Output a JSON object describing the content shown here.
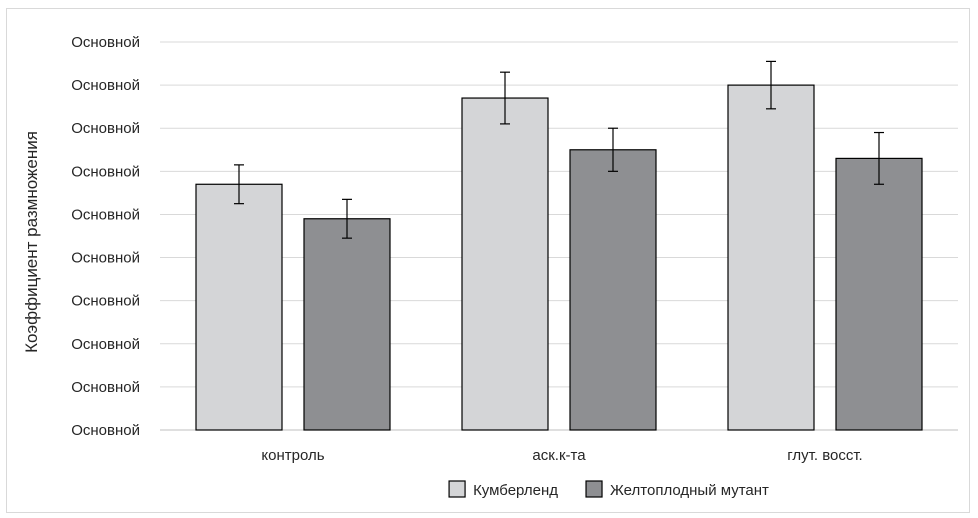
{
  "chart_data": {
    "type": "bar",
    "title": "",
    "xlabel": "",
    "ylabel": "Коэффициент размножения",
    "categories": [
      "контроль",
      "аск.к-та",
      "глут. восст."
    ],
    "y_tick_labels": [
      "Основной",
      "Основной",
      "Основной",
      "Основной",
      "Основной",
      "Основной",
      "Основной",
      "Основной",
      "Основной",
      "Основной"
    ],
    "ylim": [
      0,
      9
    ],
    "grid": true,
    "legend_position": "bottom",
    "series": [
      {
        "name": "Кумберленд",
        "color": "#d4d5d7",
        "values": [
          5.7,
          7.7,
          8.0
        ],
        "errors": [
          0.45,
          0.6,
          0.55
        ]
      },
      {
        "name": "Желтоплодный мутант",
        "color": "#8e8f92",
        "values": [
          4.9,
          6.5,
          6.3
        ],
        "errors": [
          0.45,
          0.5,
          0.6
        ]
      }
    ]
  }
}
